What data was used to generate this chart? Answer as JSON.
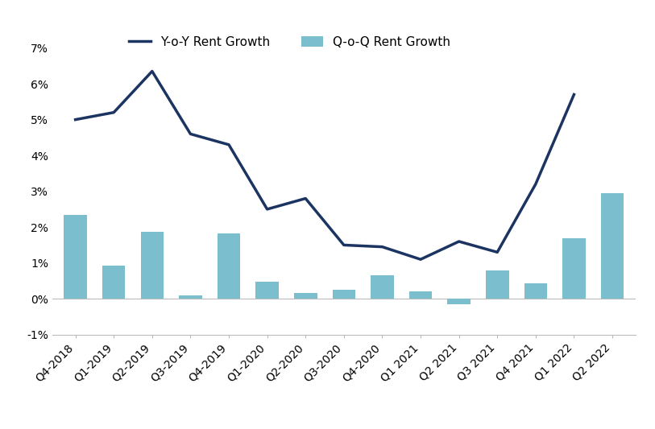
{
  "categories": [
    "Q4-2018",
    "Q1-2019",
    "Q2-2019",
    "Q3-2019",
    "Q4-2019",
    "Q1-2020",
    "Q2-2020",
    "Q3-2020",
    "Q4-2020",
    "Q1 2021",
    "Q2 2021",
    "Q3 2021",
    "Q4 2021",
    "Q1 2022",
    "Q2 2022"
  ],
  "bar_values": [
    0.0235,
    0.0092,
    0.0188,
    0.001,
    0.0182,
    0.0047,
    0.0017,
    0.0025,
    0.0065,
    0.002,
    -0.0015,
    0.0078,
    0.0043,
    0.017,
    0.0295
  ],
  "line_values": [
    0.05,
    0.052,
    0.0635,
    0.046,
    0.043,
    0.025,
    0.028,
    0.015,
    0.0145,
    0.011,
    0.016,
    0.013,
    0.032,
    0.057,
    null
  ],
  "bar_color": "#7BBFCF",
  "line_color": "#1C3461",
  "bar_label": "Q-o-Q Rent Growth",
  "line_label": "Y-o-Y Rent Growth",
  "ylim": [
    -0.01,
    0.075
  ],
  "yticks": [
    -0.01,
    0.0,
    0.01,
    0.02,
    0.03,
    0.04,
    0.05,
    0.06,
    0.07
  ],
  "background_color": "#ffffff",
  "legend_fontsize": 11,
  "tick_fontsize": 10,
  "line_width": 2.5
}
